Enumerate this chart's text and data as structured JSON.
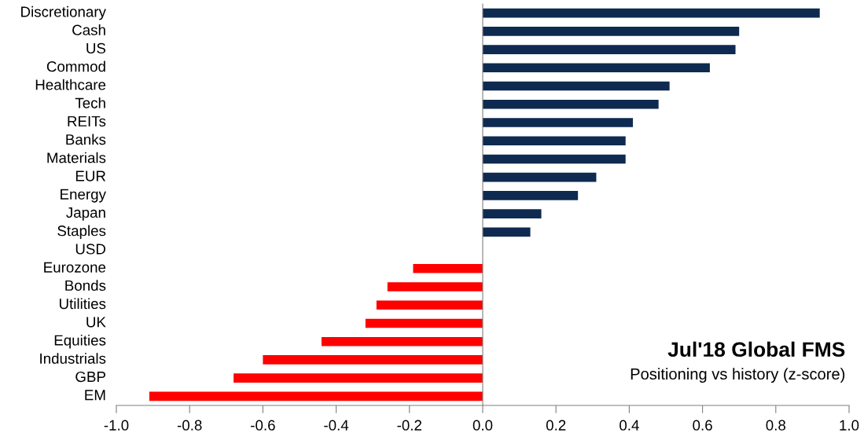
{
  "chart_data": {
    "type": "bar",
    "orientation": "horizontal",
    "title": "Jul'18 Global FMS",
    "subtitle": "Positioning vs history (z-score)",
    "categories": [
      "Discretionary",
      "Cash",
      "US",
      "Commod",
      "Healthcare",
      "Tech",
      "REITs",
      "Banks",
      "Materials",
      "EUR",
      "Energy",
      "Japan",
      "Staples",
      "USD",
      "Eurozone",
      "Bonds",
      "Utilities",
      "UK",
      "Equities",
      "Industrials",
      "GBP",
      "EM"
    ],
    "values": [
      0.92,
      0.7,
      0.69,
      0.62,
      0.51,
      0.48,
      0.41,
      0.39,
      0.39,
      0.31,
      0.26,
      0.16,
      0.13,
      0,
      -0.19,
      -0.26,
      -0.29,
      -0.32,
      -0.44,
      -0.6,
      -0.68,
      -0.91
    ],
    "colors": [
      "#0e2a50",
      "#0e2a50",
      "#0e2a50",
      "#0e2a50",
      "#0e2a50",
      "#0e2a50",
      "#0e2a50",
      "#0e2a50",
      "#0e2a50",
      "#0e2a50",
      "#0e2a50",
      "#0e2a50",
      "#0e2a50",
      "#0e2a50",
      "#ff0000",
      "#ff0000",
      "#ff0000",
      "#ff0000",
      "#ff0000",
      "#ff0000",
      "#ff0000",
      "#ff0000"
    ],
    "xlim": [
      -1.0,
      1.0
    ],
    "xticks": [
      {
        "value": -1.0,
        "label": "-1.0"
      },
      {
        "value": -0.8,
        "label": "-0.8"
      },
      {
        "value": -0.6,
        "label": "-0.6"
      },
      {
        "value": -0.4,
        "label": "-0.4"
      },
      {
        "value": -0.2,
        "label": "-0.2"
      },
      {
        "value": 0.0,
        "label": "0.0"
      },
      {
        "value": 0.2,
        "label": "0.2"
      },
      {
        "value": 0.4,
        "label": "0.4"
      },
      {
        "value": 0.6,
        "label": "0.6"
      },
      {
        "value": 0.8,
        "label": "0.8"
      },
      {
        "value": 1.0,
        "label": "1.0"
      }
    ],
    "legend": false
  }
}
